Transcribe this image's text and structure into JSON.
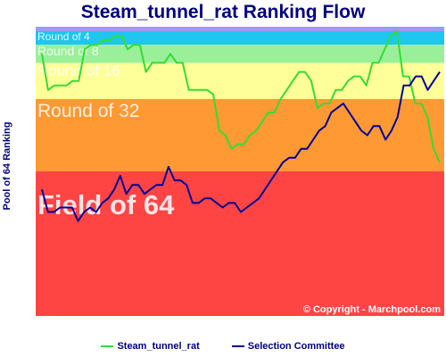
{
  "chart_data": {
    "type": "line",
    "title": "Steam_tunnel_rat Ranking Flow",
    "ylabel": "Pool of 64 Ranking",
    "xlabel": "",
    "ylim": [
      64,
      1
    ],
    "grid": false,
    "legend": "bottom",
    "copyright": "© Copyright - Marchpool.com",
    "bands": [
      {
        "label": "Round of 4",
        "from": 1,
        "to": 4,
        "color": "#1ec6f0"
      },
      {
        "label": "Round of 8",
        "from": 4,
        "to": 8,
        "color": "#99f099"
      },
      {
        "label": "Round of 16",
        "from": 8,
        "to": 16,
        "color": "#ffff99"
      },
      {
        "label": "Round of 32",
        "from": 16,
        "to": 32,
        "color": "#ff9933"
      },
      {
        "label": "Field of 64",
        "from": 32,
        "to": 64,
        "color": "#ff4444"
      }
    ],
    "series": [
      {
        "name": "Steam_tunnel_rat",
        "color": "#33dd33",
        "values": [
          6,
          14,
          13,
          13,
          13,
          12,
          12,
          5,
          4,
          4,
          3,
          3,
          2,
          2,
          5,
          4,
          4,
          10,
          8,
          8,
          8,
          6,
          8,
          8,
          14,
          14,
          14,
          14,
          15,
          23,
          24,
          27,
          26,
          26,
          24,
          23,
          21,
          19,
          19,
          16,
          14,
          12,
          10,
          10,
          12,
          18,
          17,
          17,
          14,
          14,
          12,
          11,
          11,
          13,
          8,
          8,
          5,
          2,
          1,
          11,
          11,
          17,
          17,
          20,
          27,
          30
        ]
      },
      {
        "name": "Selection Committee",
        "color": "#000099",
        "values": [
          36,
          41,
          41,
          40,
          40,
          40,
          43,
          41,
          40,
          41,
          39,
          38,
          36,
          33,
          37,
          35,
          35,
          37,
          36,
          35,
          35,
          31,
          34,
          34,
          35,
          39,
          39,
          38,
          38,
          39,
          40,
          39,
          39,
          41,
          40,
          39,
          38,
          36,
          34,
          32,
          30,
          29,
          29,
          27,
          27,
          25,
          23,
          22,
          19,
          18,
          17,
          19,
          21,
          23,
          24,
          22,
          22,
          25,
          23,
          20,
          13,
          13,
          11,
          11,
          14,
          12,
          10
        ]
      }
    ]
  }
}
